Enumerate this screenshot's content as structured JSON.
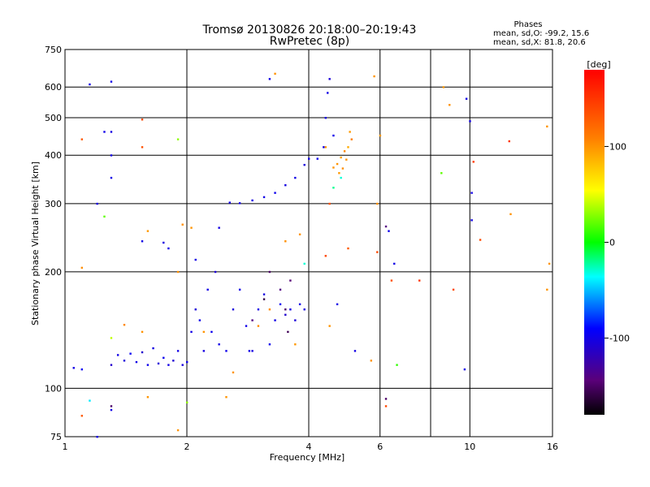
{
  "chart_data": {
    "type": "scatter",
    "title_line1": "Tromsø 20130826 20:18:00–20:19:43",
    "title_line2": "RwPretec (8p)",
    "phases_header": "Phases",
    "phases_o": "mean, sd,O: -99.2, 15.6",
    "phases_x": "mean, sd,X:  81.8, 20.6",
    "xlabel": "Frequency [MHz]",
    "ylabel": "Stationary phase Virtual Height [km]",
    "x_scale": "log",
    "y_scale": "log",
    "xlim": [
      1,
      16
    ],
    "ylim": [
      75,
      750
    ],
    "x_ticks": [
      1,
      2,
      4,
      6,
      10,
      16
    ],
    "x_tick_labels": [
      "1",
      "2",
      "4",
      "6",
      "10",
      "16"
    ],
    "y_ticks": [
      75,
      100,
      200,
      300,
      400,
      500,
      600,
      750
    ],
    "y_tick_labels": [
      "75",
      "100",
      "200",
      "300",
      "400",
      "500",
      "600",
      "750"
    ],
    "x_grid": [
      2,
      4,
      6,
      8,
      10
    ],
    "y_grid": [
      100,
      200,
      300,
      400,
      500,
      600
    ],
    "grid": true,
    "colorbar": {
      "label": "[deg]",
      "range": [
        -180,
        180
      ],
      "ticks": [
        100,
        0,
        -100
      ],
      "tick_labels": [
        "100",
        "0",
        "-100"
      ]
    },
    "series": [
      {
        "points": [
          [
            1.05,
            113,
            -100
          ],
          [
            1.1,
            112,
            -95
          ],
          [
            1.3,
            115,
            -110
          ],
          [
            1.35,
            122,
            -100
          ],
          [
            1.4,
            118,
            -105
          ],
          [
            1.45,
            123,
            -95
          ],
          [
            1.5,
            117,
            -100
          ],
          [
            1.55,
            124,
            -110
          ],
          [
            1.6,
            115,
            -98
          ],
          [
            1.65,
            127,
            -102
          ],
          [
            1.7,
            116,
            -105
          ],
          [
            1.75,
            120,
            -97
          ],
          [
            1.8,
            115,
            -100
          ],
          [
            1.85,
            118,
            -108
          ],
          [
            1.9,
            125,
            -100
          ],
          [
            1.95,
            115,
            -103
          ],
          [
            2.0,
            117,
            -98
          ],
          [
            2.05,
            140,
            -100
          ],
          [
            2.1,
            160,
            -105
          ],
          [
            2.15,
            150,
            -99
          ],
          [
            2.2,
            125,
            -102
          ],
          [
            2.25,
            180,
            -100
          ],
          [
            2.3,
            140,
            -97
          ],
          [
            2.35,
            200,
            -106
          ],
          [
            2.4,
            130,
            -100
          ],
          [
            2.5,
            125,
            -98
          ],
          [
            2.6,
            160,
            -104
          ],
          [
            2.7,
            180,
            -100
          ],
          [
            2.8,
            145,
            -99
          ],
          [
            2.9,
            125,
            -101
          ],
          [
            3.0,
            160,
            -100
          ],
          [
            3.1,
            175,
            -103
          ],
          [
            3.2,
            130,
            -98
          ],
          [
            3.3,
            150,
            -100
          ],
          [
            3.4,
            165,
            -95
          ],
          [
            3.5,
            155,
            -110
          ],
          [
            3.6,
            160,
            -100
          ],
          [
            3.7,
            150,
            -105
          ],
          [
            3.8,
            165,
            -100
          ],
          [
            3.9,
            160,
            -102
          ],
          [
            2.55,
            302,
            -100
          ],
          [
            2.7,
            301,
            -99
          ],
          [
            2.9,
            306,
            -101
          ],
          [
            3.1,
            312,
            -100
          ],
          [
            3.3,
            320,
            -98
          ],
          [
            3.5,
            335,
            -102
          ],
          [
            3.7,
            350,
            -100
          ],
          [
            3.9,
            378,
            -105
          ],
          [
            4.0,
            392,
            -100
          ],
          [
            4.2,
            392,
            -98
          ],
          [
            4.35,
            420,
            -100
          ],
          [
            4.4,
            500,
            -102
          ],
          [
            4.45,
            580,
            -100
          ],
          [
            4.5,
            630,
            -105
          ],
          [
            4.6,
            450,
            -99
          ],
          [
            1.3,
            620,
            -100
          ],
          [
            1.3,
            460,
            -102
          ],
          [
            1.3,
            350,
            -100
          ],
          [
            1.3,
            400,
            -101
          ],
          [
            1.25,
            460,
            -99
          ],
          [
            1.55,
            240,
            -100
          ],
          [
            1.75,
            238,
            -102
          ],
          [
            1.8,
            230,
            -100
          ],
          [
            3.2,
            630,
            -100
          ],
          [
            9.8,
            560,
            -100
          ],
          [
            10.1,
            320,
            -100
          ],
          [
            10.1,
            272,
            -100
          ],
          [
            1.2,
            300,
            -102
          ],
          [
            1.15,
            610,
            -100
          ],
          [
            6.3,
            255,
            -98
          ],
          [
            6.5,
            210,
            -100
          ],
          [
            2.1,
            215,
            -100
          ],
          [
            2.4,
            260,
            -101
          ],
          [
            1.3,
            88,
            -100
          ],
          [
            1.2,
            75,
            -100
          ],
          [
            9.7,
            112,
            -100
          ],
          [
            10.0,
            490,
            -100
          ],
          [
            5.2,
            125,
            -100
          ],
          [
            4.7,
            165,
            -100
          ],
          [
            2.85,
            125,
            -100
          ]
        ]
      },
      {
        "points": [
          [
            4.7,
            380,
            100
          ],
          [
            4.8,
            395,
            95
          ],
          [
            4.9,
            410,
            105
          ],
          [
            5.0,
            420,
            90
          ],
          [
            5.1,
            440,
            110
          ],
          [
            4.6,
            372,
            100
          ],
          [
            4.75,
            360,
            98
          ],
          [
            4.85,
            370,
            102
          ],
          [
            4.95,
            390,
            100
          ],
          [
            5.05,
            460,
            97
          ],
          [
            2.05,
            260,
            100
          ],
          [
            1.95,
            265,
            102
          ],
          [
            1.6,
            255,
            98
          ],
          [
            1.55,
            140,
            100
          ],
          [
            1.4,
            146,
            105
          ],
          [
            2.5,
            95,
            100
          ],
          [
            1.9,
            200,
            101
          ],
          [
            3.3,
            650,
            100
          ],
          [
            3.2,
            160,
            103
          ],
          [
            3.7,
            130,
            98
          ],
          [
            2.6,
            110,
            100
          ],
          [
            1.1,
            205,
            102
          ],
          [
            1.6,
            95,
            100
          ],
          [
            8.6,
            600,
            100
          ],
          [
            8.9,
            540,
            101
          ],
          [
            5.8,
            640,
            100
          ],
          [
            6.0,
            450,
            98
          ],
          [
            3.8,
            250,
            100
          ],
          [
            3.5,
            240,
            101
          ],
          [
            5.7,
            118,
            100
          ],
          [
            15.5,
            180,
            100
          ],
          [
            15.7,
            210,
            100
          ],
          [
            12.6,
            282,
            100
          ],
          [
            15.5,
            475,
            100
          ],
          [
            1.9,
            78,
            100
          ],
          [
            2.2,
            140,
            100
          ],
          [
            3.0,
            145,
            102
          ],
          [
            4.5,
            145,
            100
          ],
          [
            5.9,
            300,
            100
          ],
          [
            4.4,
            420,
            97
          ]
        ]
      },
      {
        "points": [
          [
            1.1,
            440,
            130
          ],
          [
            1.55,
            495,
            140
          ],
          [
            1.55,
            420,
            135
          ],
          [
            1.1,
            85,
            130
          ],
          [
            5.9,
            225,
            140
          ],
          [
            6.4,
            190,
            135
          ],
          [
            7.5,
            190,
            150
          ],
          [
            9.1,
            180,
            140
          ],
          [
            10.2,
            385,
            145
          ],
          [
            12.5,
            435,
            150
          ],
          [
            10.6,
            242,
            138
          ],
          [
            4.4,
            220,
            140
          ],
          [
            4.5,
            300,
            135
          ],
          [
            5.0,
            230,
            130
          ],
          [
            6.2,
            90,
            140
          ]
        ]
      },
      {
        "points": [
          [
            1.25,
            278,
            20
          ],
          [
            1.3,
            135,
            40
          ],
          [
            1.9,
            440,
            30
          ],
          [
            8.5,
            360,
            20
          ],
          [
            4.8,
            350,
            -30
          ],
          [
            2.0,
            92,
            30
          ],
          [
            6.6,
            115,
            10
          ],
          [
            1.15,
            93,
            -40
          ],
          [
            4.6,
            330,
            -20
          ],
          [
            3.9,
            210,
            -30
          ]
        ]
      },
      {
        "points": [
          [
            3.2,
            200,
            -150
          ],
          [
            3.4,
            180,
            -140
          ],
          [
            3.1,
            170,
            -160
          ],
          [
            3.6,
            190,
            -145
          ],
          [
            3.55,
            140,
            -155
          ],
          [
            1.3,
            90,
            -150
          ],
          [
            2.9,
            150,
            -140
          ],
          [
            3.5,
            160,
            -150
          ],
          [
            6.2,
            94,
            -150
          ],
          [
            6.2,
            262,
            -140
          ]
        ]
      }
    ]
  }
}
